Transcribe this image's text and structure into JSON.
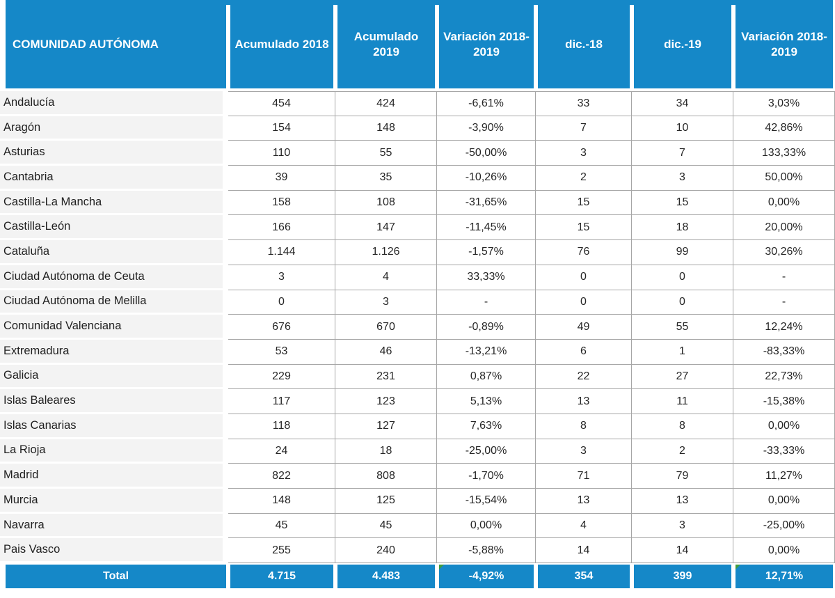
{
  "colors": {
    "header_blue": "#1588c8",
    "name_cell_bg": "#f3f3f3",
    "grid_line": "#a6a6a6",
    "body_text": "#262626",
    "total_text": "#ffffff",
    "marker_green": "#3f9b3f"
  },
  "chart_data": {
    "type": "table",
    "title": "",
    "columns": [
      "COMUNIDAD AUTÓNOMA",
      "Acumulado 2018",
      "Acumulado 2019",
      "Variación 2018-2019",
      "dic.-18",
      "dic.-19",
      "Variación 2018-2019"
    ],
    "rows": [
      [
        "Andalucía",
        "454",
        "424",
        "-6,61%",
        "33",
        "34",
        "3,03%"
      ],
      [
        "Aragón",
        "154",
        "148",
        "-3,90%",
        "7",
        "10",
        "42,86%"
      ],
      [
        "Asturias",
        "110",
        "55",
        "-50,00%",
        "3",
        "7",
        "133,33%"
      ],
      [
        "Cantabria",
        "39",
        "35",
        "-10,26%",
        "2",
        "3",
        "50,00%"
      ],
      [
        "Castilla-La Mancha",
        "158",
        "108",
        "-31,65%",
        "15",
        "15",
        "0,00%"
      ],
      [
        "Castilla-León",
        "166",
        "147",
        "-11,45%",
        "15",
        "18",
        "20,00%"
      ],
      [
        "Cataluña",
        "1.144",
        "1.126",
        "-1,57%",
        "76",
        "99",
        "30,26%"
      ],
      [
        "Ciudad Autónoma de Ceuta",
        "3",
        "4",
        "33,33%",
        "0",
        "0",
        "-"
      ],
      [
        "Ciudad Autónoma de Melilla",
        "0",
        "3",
        "-",
        "0",
        "0",
        "-"
      ],
      [
        "Comunidad Valenciana",
        "676",
        "670",
        "-0,89%",
        "49",
        "55",
        "12,24%"
      ],
      [
        "Extremadura",
        "53",
        "46",
        "-13,21%",
        "6",
        "1",
        "-83,33%"
      ],
      [
        "Galicia",
        "229",
        "231",
        "0,87%",
        "22",
        "27",
        "22,73%"
      ],
      [
        "Islas Baleares",
        "117",
        "123",
        "5,13%",
        "13",
        "11",
        "-15,38%"
      ],
      [
        "Islas Canarias",
        "118",
        "127",
        "7,63%",
        "8",
        "8",
        "0,00%"
      ],
      [
        "La Rioja",
        "24",
        "18",
        "-25,00%",
        "3",
        "2",
        "-33,33%"
      ],
      [
        "Madrid",
        "822",
        "808",
        "-1,70%",
        "71",
        "79",
        "11,27%"
      ],
      [
        "Murcia",
        "148",
        "125",
        "-15,54%",
        "13",
        "13",
        "0,00%"
      ],
      [
        "Navarra",
        "45",
        "45",
        "0,00%",
        "4",
        "3",
        "-25,00%"
      ],
      [
        "Pais Vasco",
        "255",
        "240",
        "-5,88%",
        "14",
        "14",
        "0,00%"
      ]
    ],
    "total_row": [
      "Total",
      "4.715",
      "4.483",
      "-4,92%",
      "354",
      "399",
      "12,71%"
    ],
    "total_green_marks": [
      3,
      6
    ],
    "layout_hints": {
      "grid": true,
      "header_fill": "blue",
      "total_fill": "blue"
    }
  }
}
